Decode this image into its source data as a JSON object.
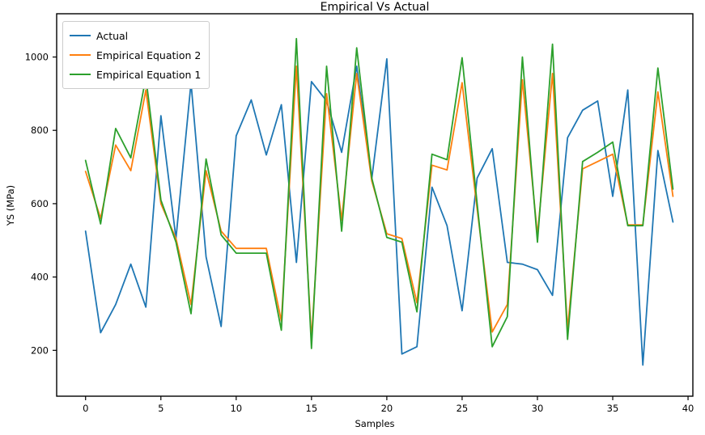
{
  "chart_data": {
    "type": "line",
    "title": "Empirical Vs Actual",
    "xlabel": "Samples",
    "ylabel": "YS (MPa)",
    "x_ticks": [
      0,
      5,
      10,
      15,
      20,
      25,
      30,
      35,
      40
    ],
    "y_ticks": [
      200,
      400,
      600,
      800,
      1000
    ],
    "xlim": [
      -1.92,
      40.32
    ],
    "ylim": [
      75,
      1118
    ],
    "grid": false,
    "legend_position": "upper-left",
    "x": [
      0,
      1,
      2,
      3,
      4,
      5,
      6,
      7,
      8,
      9,
      10,
      11,
      12,
      13,
      14,
      15,
      16,
      17,
      18,
      19,
      20,
      21,
      22,
      23,
      24,
      25,
      26,
      27,
      28,
      29,
      30,
      31,
      32,
      33,
      34,
      35,
      36,
      37,
      38,
      39
    ],
    "series": [
      {
        "name": "Actual",
        "color": "#1f77b4",
        "values": [
          525,
          248,
          325,
          435,
          318,
          840,
          505,
          930,
          455,
          265,
          785,
          883,
          733,
          870,
          440,
          933,
          880,
          740,
          975,
          668,
          995,
          190,
          210,
          645,
          540,
          308,
          670,
          750,
          440,
          435,
          420,
          350,
          780,
          855,
          880,
          620,
          910,
          160,
          745,
          550
        ]
      },
      {
        "name": "Empirical Equation 2",
        "color": "#ff7f0e",
        "values": [
          688,
          560,
          760,
          690,
          910,
          600,
          505,
          325,
          690,
          525,
          478,
          478,
          478,
          280,
          975,
          230,
          900,
          555,
          955,
          662,
          518,
          505,
          330,
          705,
          692,
          930,
          585,
          250,
          325,
          938,
          515,
          955,
          258,
          695,
          715,
          735,
          542,
          542,
          905,
          620
        ]
      },
      {
        "name": "Empirical Equation 1",
        "color": "#2ca02c",
        "values": [
          718,
          545,
          805,
          725,
          945,
          610,
          495,
          300,
          722,
          515,
          465,
          465,
          465,
          255,
          1050,
          205,
          975,
          525,
          1025,
          670,
          508,
          495,
          305,
          735,
          720,
          998,
          600,
          210,
          292,
          1000,
          495,
          1035,
          230,
          715,
          740,
          768,
          540,
          540,
          970,
          640
        ]
      }
    ]
  }
}
